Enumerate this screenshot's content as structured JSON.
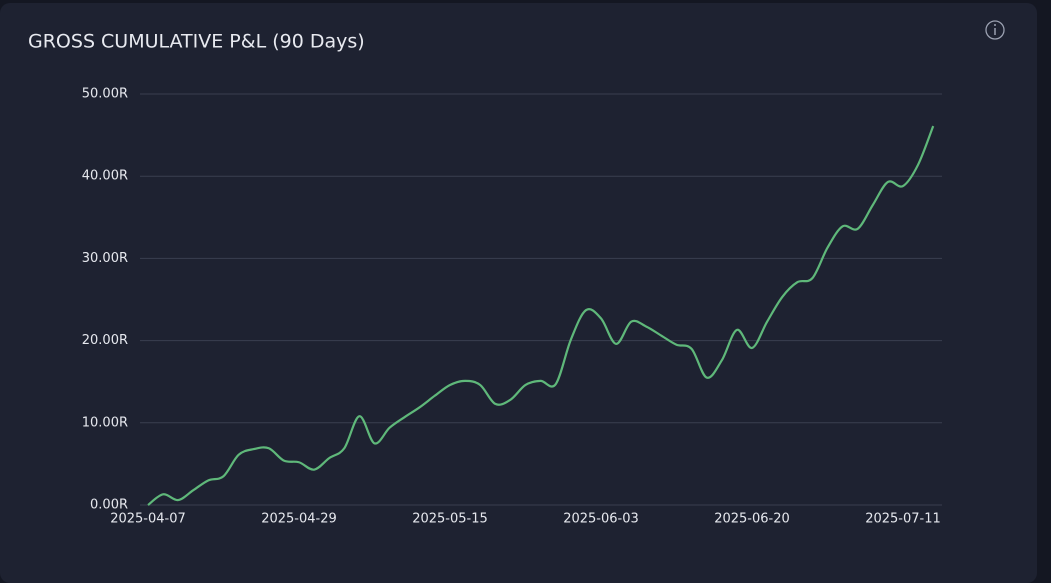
{
  "chart_data": {
    "type": "line",
    "title": "GROSS CUMULATIVE P&L (90 Days)",
    "categories": [
      "2025-04-07",
      null,
      null,
      null,
      null,
      null,
      null,
      null,
      null,
      null,
      "2025-04-29",
      null,
      null,
      null,
      null,
      null,
      null,
      null,
      null,
      null,
      "2025-05-15",
      null,
      null,
      null,
      null,
      null,
      null,
      null,
      null,
      null,
      "2025-06-03",
      null,
      null,
      null,
      null,
      null,
      null,
      null,
      null,
      null,
      "2025-06-20",
      null,
      null,
      null,
      null,
      null,
      null,
      null,
      null,
      null,
      "2025-07-11",
      null,
      null
    ],
    "series": [
      {
        "color": "#5fb87a",
        "values": [
          0,
          1.3,
          0.6,
          1.8,
          3.0,
          3.5,
          6.1,
          6.8,
          6.9,
          5.4,
          5.2,
          4.3,
          5.7,
          6.9,
          10.8,
          7.5,
          9.4,
          10.7,
          11.9,
          13.3,
          14.6,
          15.1,
          14.6,
          12.3,
          12.8,
          14.6,
          15.1,
          14.7,
          20.1,
          23.7,
          22.7,
          19.6,
          22.3,
          21.7,
          20.6,
          19.5,
          19.0,
          15.5,
          17.6,
          21.3,
          19.1,
          22.3,
          25.3,
          27.1,
          27.6,
          31.3,
          33.9,
          33.6,
          36.5,
          39.3,
          38.8,
          41.4,
          46.1
        ]
      }
    ],
    "ylim": [
      0,
      50
    ],
    "yticks": [
      {
        "value": 0,
        "label": "0.00R"
      },
      {
        "value": 10,
        "label": "10.00R"
      },
      {
        "value": 20,
        "label": "20.00R"
      },
      {
        "value": 30,
        "label": "30.00R"
      },
      {
        "value": 40,
        "label": "40.00R"
      },
      {
        "value": 50,
        "label": "50.00R"
      }
    ],
    "grid": true
  }
}
